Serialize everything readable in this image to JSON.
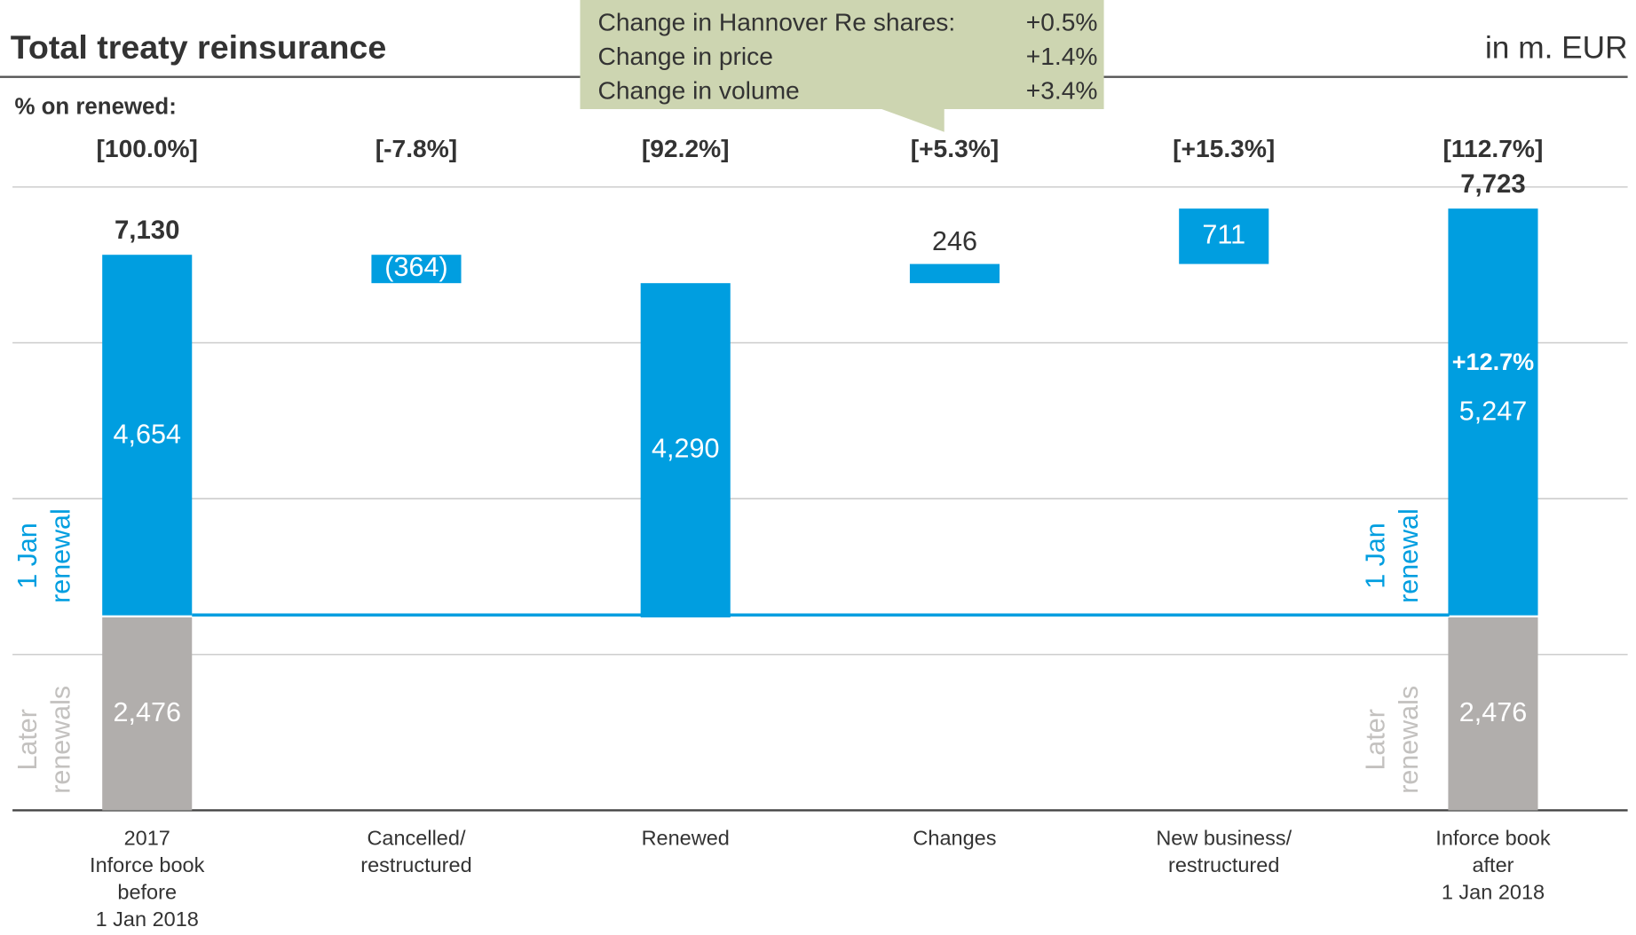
{
  "chart_data": {
    "type": "waterfall",
    "title": "Total treaty reinsurance",
    "unit_label": "in m. EUR",
    "percent_caption": "% on renewed:",
    "percent_labels": [
      "[100.0%]",
      "[-7.8%]",
      "[92.2%]",
      "[+5.3%]",
      "[+15.3%]",
      "[112.7%]"
    ],
    "categories": [
      [
        "2017",
        "Inforce book",
        "before",
        "1 Jan 2018"
      ],
      [
        "Cancelled/",
        "restructured"
      ],
      [
        "Renewed"
      ],
      [
        "Changes"
      ],
      [
        "New business/",
        "restructured"
      ],
      [
        "Inforce book",
        "after",
        "1 Jan 2018"
      ]
    ],
    "measure": [
      "absolute",
      "relative",
      "total",
      "relative",
      "relative",
      "total"
    ],
    "series": [
      {
        "name": [
          "Later",
          "renewals"
        ],
        "color": "#b1aeac",
        "values": [
          2476,
          null,
          null,
          null,
          null,
          2476
        ],
        "value_labels": [
          "2,476",
          null,
          null,
          null,
          null,
          "2,476"
        ]
      },
      {
        "name": [
          "1 Jan",
          "renewal"
        ],
        "color": "#009ee0",
        "values": [
          4654,
          -364,
          4290,
          246,
          711,
          5247
        ],
        "value_labels": [
          "4,654",
          "(364)",
          "4,290",
          "246",
          "711",
          "5,247"
        ]
      }
    ],
    "totals": [
      7130,
      null,
      null,
      null,
      null,
      7723
    ],
    "total_labels": [
      "7,130",
      null,
      null,
      null,
      null,
      "7,723"
    ],
    "growth_label": "+12.7%",
    "callout": [
      [
        "Change in Hannover Re shares:",
        "+0.5%"
      ],
      [
        "Change in price",
        "+1.4%"
      ],
      [
        "Change in volume",
        "+3.4%"
      ]
    ],
    "ylim": [
      0,
      8000
    ],
    "yticks": [
      0,
      2000,
      4000,
      6000,
      8000
    ],
    "grid": true
  }
}
